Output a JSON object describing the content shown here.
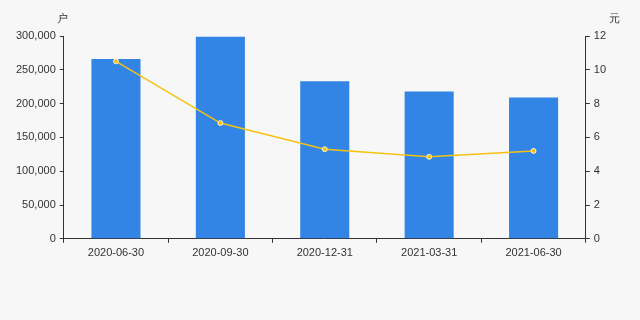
{
  "chart_data": {
    "type": "bar",
    "ylabel": "户",
    "y2label": "元",
    "categories": [
      "2020-06-30",
      "2020-09-30",
      "2020-12-31",
      "2021-03-31",
      "2021-06-30"
    ],
    "series": [
      {
        "type": "bar",
        "color": "#3385e5",
        "values": [
          266000,
          299000,
          233000,
          218000,
          209000
        ]
      },
      {
        "type": "line",
        "axis": "y2",
        "color": "#f5c211",
        "marker": "circle",
        "values": [
          10.5,
          6.85,
          5.3,
          4.85,
          5.2
        ]
      }
    ],
    "ylim": [
      0,
      300000
    ],
    "yticks": [
      0,
      {
        "value": 50000,
        "label": "50,000"
      },
      {
        "value": 100000,
        "label": "100,000"
      },
      {
        "value": 150000,
        "label": "150,000"
      },
      {
        "value": 200000,
        "label": "200,000"
      },
      {
        "value": 250000,
        "label": "250,000"
      },
      {
        "value": 300000,
        "label": "300,000"
      }
    ],
    "y2lim": [
      0,
      12
    ],
    "y2ticks": [
      0,
      2,
      4,
      6,
      8,
      10,
      12
    ],
    "grid": false
  }
}
